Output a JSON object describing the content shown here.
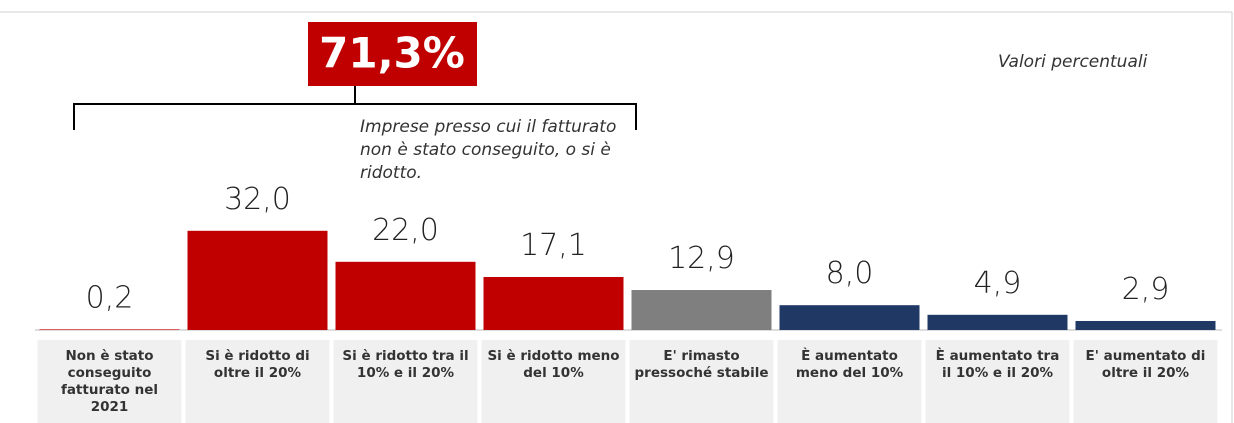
{
  "chart_data": {
    "type": "bar",
    "categories": [
      "Non è stato conseguito fatturato nel 2021",
      "Si è ridotto di oltre il 20%",
      "Si è ridotto tra il 10% e il 20%",
      "Si è ridotto meno del 10%",
      "E' rimasto pressoché stabile",
      "È aumentato meno del 10%",
      "È aumentato tra il 10% e il 20%",
      "E' aumentato di oltre il 20%"
    ],
    "values": [
      0.2,
      32.0,
      22.0,
      17.1,
      12.9,
      8.0,
      4.9,
      2.9
    ],
    "value_labels": [
      "0,2",
      "32,0",
      "22,0",
      "17,1",
      "12,9",
      "8,0",
      "4,9",
      "2,9"
    ],
    "colors": [
      "#c00000",
      "#c00000",
      "#c00000",
      "#c00000",
      "#7f7f7f",
      "#1f3864",
      "#1f3864",
      "#1f3864"
    ],
    "annotations": {
      "highlight": "71,3%",
      "highlight_note": "Imprese presso cui il fatturato non è stato conseguito, o si è ridotto.",
      "units_note": "Valori percentuali"
    }
  }
}
